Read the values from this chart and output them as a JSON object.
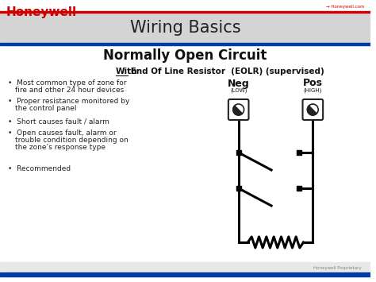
{
  "bg_color": "#f0f0f0",
  "white_bg": "#ffffff",
  "title_bar_color": "#d4d4d4",
  "title_text": "Wiring Basics",
  "subtitle_text": "Normally Open Circuit",
  "sub2_with": "With",
  "sub2_rest": " End Of Line Resistor  (EOLR) (supervised)",
  "neg_label": "Neg",
  "neg_sub": "(LOW)",
  "pos_label": "Pos",
  "pos_sub": "(HIGH)",
  "bullet_points": [
    "Most common type of zone for\nfire and other 24 hour devices",
    "Proper resistance monitored by\nthe control panel",
    "Short causes fault / alarm",
    "Open causes fault, alarm or\ntrouble condition depending on\nthe zone’s response type",
    "Recommended"
  ],
  "honeywell_red": "#cc0000",
  "honeywell_blue": "#003da6",
  "footer_blue": "#003da6",
  "line_color": "#000000",
  "footer_text": "Honeywell Proprietary"
}
